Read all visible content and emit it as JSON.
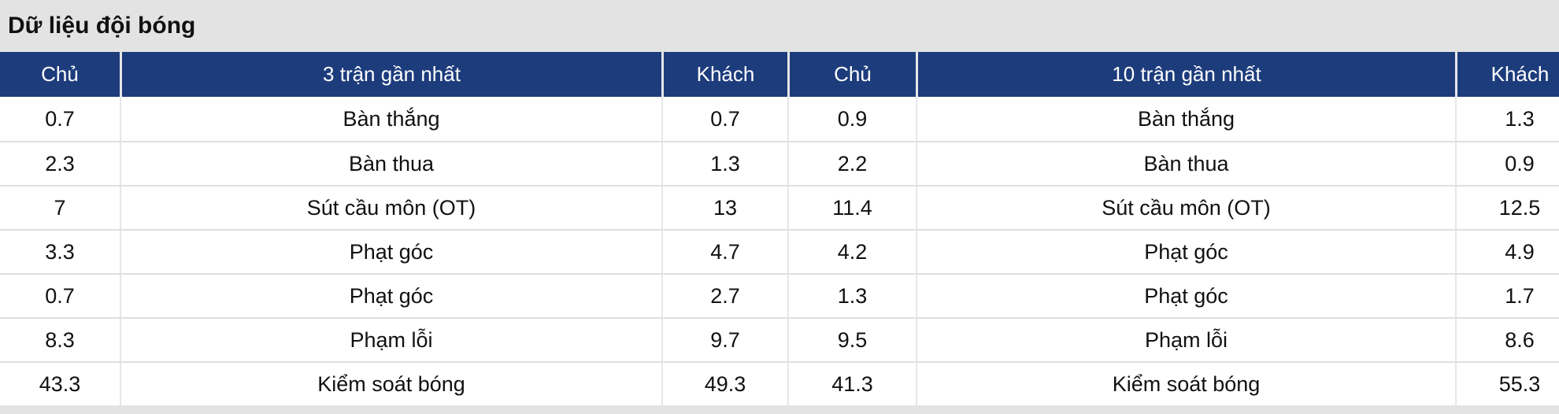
{
  "page": {
    "title": "Dữ liệu đội bóng"
  },
  "colors": {
    "page_bg": "#e3e3e3",
    "header_bg": "#1d3c7c",
    "header_text": "#ffffff",
    "header_divider": "#e6e6e6",
    "row_bg": "#ffffff",
    "body_text": "#111111",
    "divider": "#dfdfdf",
    "divider_light": "#e7e7e7"
  },
  "tables": [
    {
      "id": "last3",
      "headers": {
        "home": "Chủ",
        "stat": "3 trận gần nhất",
        "away": "Khách"
      },
      "rows": [
        {
          "home": "0.7",
          "stat": "Bàn thắng",
          "away": "0.7"
        },
        {
          "home": "2.3",
          "stat": "Bàn thua",
          "away": "1.3"
        },
        {
          "home": "7",
          "stat": "Sút cầu môn (OT)",
          "away": "13"
        },
        {
          "home": "3.3",
          "stat": "Phạt góc",
          "away": "4.7"
        },
        {
          "home": "0.7",
          "stat": "Phạt góc",
          "away": "2.7"
        },
        {
          "home": "8.3",
          "stat": "Phạm lỗi",
          "away": "9.7"
        },
        {
          "home": "43.3",
          "stat": "Kiểm soát bóng",
          "away": "49.3"
        }
      ]
    },
    {
      "id": "last10",
      "headers": {
        "home": "Chủ",
        "stat": "10 trận gần nhất",
        "away": "Khách"
      },
      "rows": [
        {
          "home": "0.9",
          "stat": "Bàn thắng",
          "away": "1.3"
        },
        {
          "home": "2.2",
          "stat": "Bàn thua",
          "away": "0.9"
        },
        {
          "home": "11.4",
          "stat": "Sút cầu môn (OT)",
          "away": "12.5"
        },
        {
          "home": "4.2",
          "stat": "Phạt góc",
          "away": "4.9"
        },
        {
          "home": "1.3",
          "stat": "Phạt góc",
          "away": "1.7"
        },
        {
          "home": "9.5",
          "stat": "Phạm lỗi",
          "away": "8.6"
        },
        {
          "home": "41.3",
          "stat": "Kiểm soát bóng",
          "away": "55.3"
        }
      ]
    }
  ]
}
